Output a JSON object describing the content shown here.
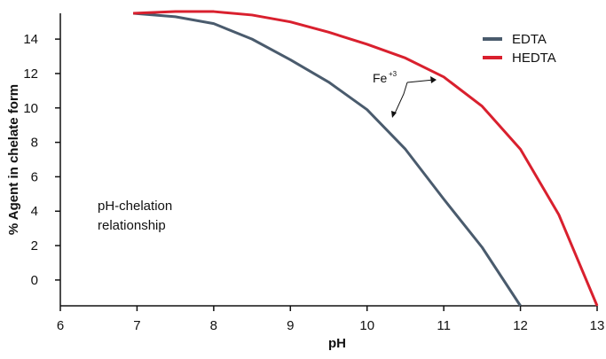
{
  "chart_data": {
    "type": "line",
    "xlabel": "pH",
    "ylabel": "% Agent in chelate form",
    "xlim": [
      6,
      13
    ],
    "ylim": [
      -1.5,
      15.5
    ],
    "x_ticks": [
      6,
      7,
      8,
      9,
      10,
      11,
      12,
      13
    ],
    "y_ticks": [
      0,
      2,
      4,
      6,
      8,
      10,
      12,
      14
    ],
    "legend_position": "top-right",
    "series": [
      {
        "name": "EDTA",
        "color": "#4a5b6d",
        "x": [
          6.95,
          7.5,
          8.0,
          8.5,
          9.0,
          9.5,
          10.0,
          10.5,
          11.0,
          11.5,
          12.0
        ],
        "y": [
          15.5,
          15.3,
          14.9,
          14.0,
          12.8,
          11.5,
          9.9,
          7.6,
          4.7,
          1.9,
          -1.5
        ]
      },
      {
        "name": "HEDTA",
        "color": "#d9202e",
        "x": [
          6.95,
          7.5,
          8.0,
          8.5,
          9.0,
          9.5,
          10.0,
          10.5,
          11.0,
          11.5,
          12.0,
          12.5,
          13.0
        ],
        "y": [
          15.5,
          15.6,
          15.6,
          15.4,
          15.0,
          14.4,
          13.7,
          12.9,
          11.8,
          10.1,
          7.6,
          3.8,
          -1.5
        ]
      }
    ],
    "annotations": [
      {
        "text_base": "Fe",
        "text_sup": "+3"
      },
      {
        "text": "pH-chelation relationship"
      }
    ]
  }
}
